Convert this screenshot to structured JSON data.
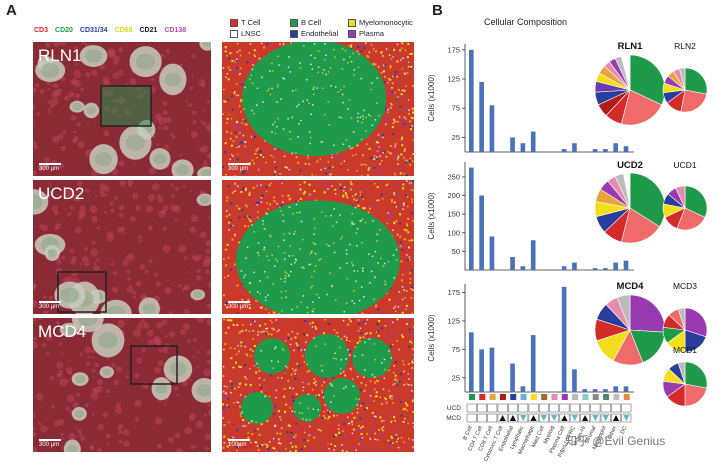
{
  "panels": {
    "a_label": "A",
    "b_label": "B"
  },
  "markers": [
    {
      "text": "CD3",
      "color": "#e0202a"
    },
    {
      "text": "CD20",
      "color": "#1e9a4a"
    },
    {
      "text": "CD31/34",
      "color": "#2c3aa0"
    },
    {
      "text": "CD68",
      "color": "#e6d21a"
    },
    {
      "text": "CD21",
      "color": "#222222"
    },
    {
      "text": "CD138",
      "color": "#b34ab8"
    }
  ],
  "legend": [
    {
      "label": "T Cell",
      "color": "#e32a2a"
    },
    {
      "label": "B Cell",
      "color": "#1e9a4a"
    },
    {
      "label": "Myelomonocytic",
      "color": "#f2df1c"
    },
    {
      "label": "LNSC",
      "color": "#ffffff"
    },
    {
      "label": "Endothelial",
      "color": "#2a3c9c"
    },
    {
      "label": "Plasma",
      "color": "#9a3ab0"
    }
  ],
  "tiles": [
    {
      "label": "RLN1",
      "scale": "300 µm",
      "map_scale": "300 µm"
    },
    {
      "label": "UCD2",
      "scale": "300 µm",
      "map_scale": "300 µm"
    },
    {
      "label": "MCD4",
      "scale": "300 µm",
      "map_scale": "100µm"
    }
  ],
  "chart_data": {
    "type": "bar",
    "title": "Cellular Composition",
    "categories": [
      "B Cell",
      "CD4 T Cell",
      "CD8 T Cell",
      "Cytotoxic T Cell",
      "Endothelial",
      "Lymphatic",
      "Macrophage",
      "Mast Cell",
      "Myeloid",
      "Plasma Cell",
      "Pdpn-Lo FRC",
      "Pdpn-Hi",
      "Stromal",
      "Neutrophil",
      "Other",
      "DC"
    ],
    "panels": [
      {
        "sample": "RLN1",
        "ylabel": "Cells (x1000)",
        "yticks": [
          25,
          75,
          125,
          175
        ],
        "ylim": [
          0,
          185
        ],
        "values": [
          175,
          120,
          80,
          0,
          25,
          15,
          35,
          0,
          0,
          5,
          15,
          0,
          5,
          5,
          15,
          10
        ]
      },
      {
        "sample": "UCD2",
        "ylabel": "Cells (x1000)",
        "yticks": [
          50,
          100,
          150,
          200,
          250
        ],
        "ylim": [
          0,
          290
        ],
        "values": [
          275,
          200,
          90,
          0,
          35,
          10,
          80,
          0,
          0,
          10,
          20,
          0,
          5,
          5,
          20,
          25
        ]
      },
      {
        "sample": "MCD4",
        "ylabel": "Cells (x1000)",
        "yticks": [
          25,
          75,
          125,
          175
        ],
        "ylim": [
          0,
          190
        ],
        "values": [
          105,
          75,
          78,
          0,
          50,
          10,
          100,
          0,
          0,
          185,
          40,
          5,
          5,
          5,
          10,
          10
        ]
      }
    ],
    "pies": [
      {
        "name": "RLN1",
        "bold": true,
        "size": "large",
        "slices": [
          0.32,
          0.22,
          0.08,
          0.06,
          0.06,
          0.05,
          0.04,
          0.04,
          0.03,
          0.03,
          0.03,
          0.04
        ],
        "colors": [
          "#1e9a4a",
          "#f06a6a",
          "#d42a2a",
          "#b11a1a",
          "#2a3c9c",
          "#6a3cb0",
          "#f2df1c",
          "#e8a33a",
          "#e58bb0",
          "#9a3ab0",
          "#bbbbbb",
          "#ffffff"
        ]
      },
      {
        "name": "RLN2",
        "bold": false,
        "size": "small",
        "slices": [
          0.28,
          0.25,
          0.12,
          0.08,
          0.07,
          0.06,
          0.05,
          0.05,
          0.04
        ],
        "colors": [
          "#1e9a4a",
          "#f06a6a",
          "#d42a2a",
          "#2a3c9c",
          "#f2df1c",
          "#9a3ab0",
          "#e8a33a",
          "#e58bb0",
          "#bbbbbb"
        ]
      },
      {
        "name": "UCD2",
        "bold": true,
        "size": "large",
        "slices": [
          0.34,
          0.2,
          0.09,
          0.08,
          0.07,
          0.06,
          0.05,
          0.04,
          0.04,
          0.03
        ],
        "colors": [
          "#1e9a4a",
          "#f06a6a",
          "#d42a2a",
          "#2a3c9c",
          "#f2df1c",
          "#e8a33a",
          "#9a3ab0",
          "#e58bb0",
          "#bbbbbb",
          "#ffffff"
        ]
      },
      {
        "name": "UCD1",
        "bold": false,
        "size": "small",
        "slices": [
          0.32,
          0.24,
          0.12,
          0.1,
          0.08,
          0.07,
          0.07
        ],
        "colors": [
          "#1e9a4a",
          "#f06a6a",
          "#d42a2a",
          "#f2df1c",
          "#2a3c9c",
          "#9a3ab0",
          "#e58bb0"
        ]
      },
      {
        "name": "MCD4",
        "bold": true,
        "size": "large",
        "slices": [
          0.26,
          0.18,
          0.14,
          0.12,
          0.1,
          0.08,
          0.06,
          0.06
        ],
        "colors": [
          "#9a3ab0",
          "#1e9a4a",
          "#f06a6a",
          "#f2df1c",
          "#d42a2a",
          "#2a3c9c",
          "#e58bb0",
          "#bbbbbb"
        ]
      },
      {
        "name": "MCD3",
        "bold": false,
        "size": "small",
        "slices": [
          0.3,
          0.2,
          0.15,
          0.12,
          0.1,
          0.08,
          0.05
        ],
        "colors": [
          "#9a3ab0",
          "#2a3c9c",
          "#f2df1c",
          "#1e9a4a",
          "#d42a2a",
          "#f06a6a",
          "#bbbbbb"
        ]
      },
      {
        "name": "MCD1",
        "bold": false,
        "size": "small",
        "slices": [
          0.28,
          0.22,
          0.15,
          0.12,
          0.1,
          0.08,
          0.05
        ],
        "colors": [
          "#1e9a4a",
          "#f06a6a",
          "#d42a2a",
          "#9a3ab0",
          "#f2df1c",
          "#2a3c9c",
          "#bbbbbb"
        ]
      }
    ],
    "category_colors": [
      "#1e9a4a",
      "#d42a2a",
      "#e8a33a",
      "#b11a1a",
      "#2a3c9c",
      "#6ab0d8",
      "#f2df1c",
      "#9a6a3a",
      "#e58bb0",
      "#9a3ab0",
      "#bbbbbb",
      "#7fd0c0",
      "#888888",
      "#4a8a6a",
      "#c0c0c0",
      "#e58b3a"
    ],
    "status_rows": [
      {
        "label": "UCD",
        "marks": [
          "",
          "",
          "",
          "",
          "",
          "",
          "",
          "",
          "",
          "",
          "",
          "",
          "",
          "",
          "",
          ""
        ]
      },
      {
        "label": "MCD",
        "marks": [
          "",
          "",
          "",
          "up",
          "up",
          "down",
          "up",
          "down",
          "down",
          "up",
          "down",
          "up",
          "down",
          "down",
          "up",
          "down"
        ]
      }
    ]
  },
  "watermark": "知乎 @Evil Genius"
}
